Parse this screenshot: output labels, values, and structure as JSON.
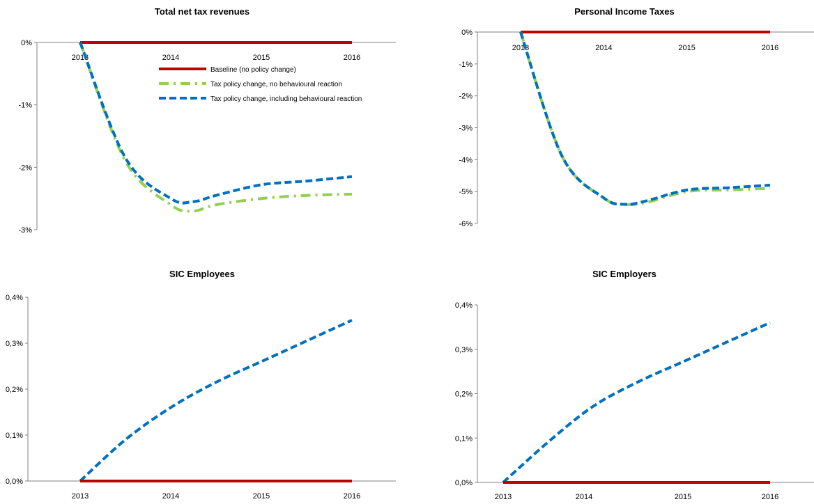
{
  "colors": {
    "baseline": "#C00000",
    "no_behaviour": "#92D050",
    "behaviour": "#0070C0",
    "axis": "#808080"
  },
  "legend": [
    "Baseline (no policy change)",
    "Tax policy change, no behavioural reaction",
    "Tax policy change, including behavioural reaction"
  ],
  "chart_data": [
    {
      "type": "line",
      "title": "Total net tax revenues",
      "categories": [
        "2013",
        "2014",
        "2015",
        "2016"
      ],
      "ylim": [
        -3,
        0
      ],
      "ytick_labels": [
        "0%",
        "-1%",
        "-2%",
        "-3%"
      ],
      "legend_position": "top-right",
      "series": [
        {
          "name": "Baseline (no policy change)",
          "x": [
            2013,
            2014,
            2015,
            2016
          ],
          "values": [
            0,
            0,
            0,
            0
          ]
        },
        {
          "name": "Tax policy change, no behavioural reaction",
          "x": [
            2013,
            2013.5,
            2014,
            2014.25,
            2014.5,
            2015,
            2015.5,
            2016
          ],
          "values": [
            0,
            -1.9,
            -2.6,
            -2.7,
            -2.6,
            -2.5,
            -2.45,
            -2.43
          ]
        },
        {
          "name": "Tax policy change, including behavioural reaction",
          "x": [
            2013,
            2013.5,
            2014,
            2014.25,
            2014.5,
            2015,
            2015.5,
            2016
          ],
          "values": [
            0,
            -1.85,
            -2.5,
            -2.55,
            -2.45,
            -2.28,
            -2.22,
            -2.15
          ]
        }
      ]
    },
    {
      "type": "line",
      "title": "Personal Income Taxes",
      "categories": [
        "2013",
        "2014",
        "2015",
        "2016"
      ],
      "ylim": [
        -6,
        0
      ],
      "ytick_labels": [
        "0%",
        "-1%",
        "-2%",
        "-3%",
        "-4%",
        "-5%",
        "-6%"
      ],
      "series": [
        {
          "name": "Baseline (no policy change)",
          "x": [
            2013,
            2014,
            2015,
            2016
          ],
          "values": [
            0,
            0,
            0,
            0
          ]
        },
        {
          "name": "Tax policy change, no behavioural reaction",
          "x": [
            2013,
            2013.5,
            2014,
            2014.25,
            2014.5,
            2015,
            2015.5,
            2016
          ],
          "values": [
            0,
            -3.9,
            -5.2,
            -5.4,
            -5.35,
            -5.0,
            -4.95,
            -4.9
          ]
        },
        {
          "name": "Tax policy change, including behavioural reaction",
          "x": [
            2013,
            2013.5,
            2014,
            2014.25,
            2014.5,
            2015,
            2015.5,
            2016
          ],
          "values": [
            0,
            -3.9,
            -5.2,
            -5.4,
            -5.3,
            -4.95,
            -4.88,
            -4.8
          ]
        }
      ]
    },
    {
      "type": "line",
      "title": "SIC Employees",
      "categories": [
        "2013",
        "2014",
        "2015",
        "2016"
      ],
      "ylim": [
        0,
        0.4
      ],
      "ytick_labels": [
        "0,4%",
        "0,3%",
        "0,2%",
        "0,1%",
        "0,0%"
      ],
      "series": [
        {
          "name": "Baseline (no policy change)",
          "x": [
            2013,
            2014,
            2015,
            2016
          ],
          "values": [
            0,
            0,
            0,
            0
          ]
        },
        {
          "name": "Tax policy change, no behavioural reaction",
          "x": [
            2013,
            2014,
            2015,
            2016
          ],
          "values": [
            0,
            0,
            0,
            0
          ]
        },
        {
          "name": "Tax policy change, including behavioural reaction",
          "x": [
            2013,
            2013.5,
            2014,
            2014.5,
            2015,
            2015.5,
            2016
          ],
          "values": [
            0,
            0.09,
            0.16,
            0.215,
            0.26,
            0.305,
            0.35
          ]
        }
      ]
    },
    {
      "type": "line",
      "title": "SIC Employers",
      "categories": [
        "2013",
        "2014",
        "2015",
        "2016"
      ],
      "ylim": [
        0,
        0.4
      ],
      "ytick_labels": [
        "0,4%",
        "0,3%",
        "0,2%",
        "0,1%",
        "0,0%"
      ],
      "series": [
        {
          "name": "Baseline (no policy change)",
          "x": [
            2013,
            2014,
            2015,
            2016
          ],
          "values": [
            0,
            0,
            0,
            0
          ]
        },
        {
          "name": "Tax policy change, no behavioural reaction",
          "x": [
            2013,
            2014,
            2015,
            2016
          ],
          "values": [
            0,
            0,
            0,
            0
          ]
        },
        {
          "name": "Tax policy change, including behavioural reaction",
          "x": [
            2013,
            2013.5,
            2014,
            2014.5,
            2015,
            2015.5,
            2016
          ],
          "values": [
            0,
            0.09,
            0.17,
            0.225,
            0.27,
            0.315,
            0.36
          ]
        }
      ]
    }
  ]
}
